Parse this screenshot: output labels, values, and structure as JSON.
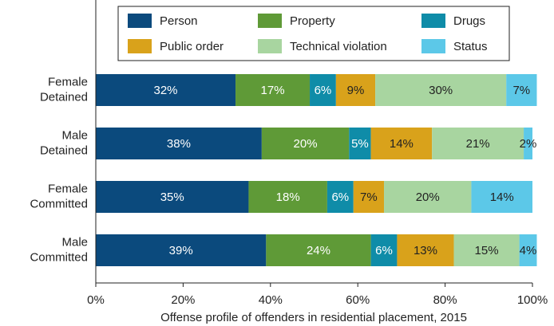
{
  "chart_data": {
    "type": "stacked-bar-horizontal",
    "xlabel": "Offense profile of offenders in residential placement, 2015",
    "categories": [
      "Female Detained",
      "Male Detained",
      "Female Committed",
      "Male Committed"
    ],
    "series": [
      {
        "name": "Person",
        "color": "#0b4a7d",
        "values": [
          32,
          38,
          35,
          39
        ],
        "value_labels": [
          "32%",
          "38%",
          "35%",
          "39%"
        ]
      },
      {
        "name": "Property",
        "color": "#5f9a37",
        "values": [
          17,
          20,
          18,
          24
        ],
        "value_labels": [
          "17%",
          "20%",
          "18%",
          "24%"
        ]
      },
      {
        "name": "Drugs",
        "color": "#0f8ca8",
        "values": [
          6,
          5,
          6,
          6
        ],
        "value_labels": [
          "6%",
          "5%",
          "6%",
          "6%"
        ]
      },
      {
        "name": "Public order",
        "color": "#d9a21b",
        "values": [
          9,
          14,
          7,
          13
        ],
        "value_labels": [
          "9%",
          "14%",
          "7%",
          "13%"
        ]
      },
      {
        "name": "Technical violation",
        "color": "#a8d5a0",
        "values": [
          30,
          21,
          20,
          15
        ],
        "value_labels": [
          "30%",
          "21%",
          "20%",
          "15%"
        ]
      },
      {
        "name": "Status",
        "color": "#5cc8e8",
        "values": [
          7,
          2,
          14,
          4
        ],
        "value_labels": [
          "7%",
          "2%",
          "14%",
          "4%"
        ]
      }
    ],
    "xlim": [
      0,
      100
    ],
    "xticks": [
      {
        "value": 0,
        "label": "0%"
      },
      {
        "value": 20,
        "label": "20%"
      },
      {
        "value": 40,
        "label": "40%"
      },
      {
        "value": 60,
        "label": "60%"
      },
      {
        "value": 80,
        "label": "80%"
      },
      {
        "value": 100,
        "label": "100%"
      }
    ],
    "legend": "top"
  }
}
